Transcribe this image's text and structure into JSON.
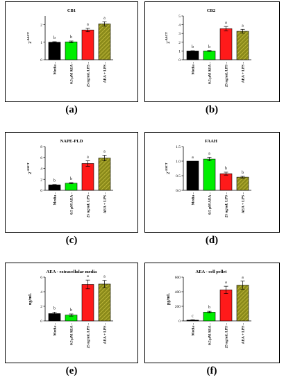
{
  "panel_letters": [
    "(a)",
    "(b)",
    "(c)",
    "(d)",
    "(e)",
    "(f)"
  ],
  "colors": {
    "media": "#000000",
    "aea": "#00ee00",
    "lps": "#ff1a1a",
    "aea_lps": "#8a8a1a",
    "aea_lps_stripe": "#c8c040"
  },
  "chart_data": [
    {
      "type": "bar",
      "title": "CB1",
      "ylabel": "2-ΔΔCT",
      "categories": [
        "Media",
        "0.5 µM AEA",
        "25 ng/mL LPS",
        "AEA + LPS"
      ],
      "values": [
        1.0,
        1.02,
        1.7,
        2.05
      ],
      "errors": [
        0.03,
        0.05,
        0.1,
        0.12
      ],
      "letters": [
        "b",
        "b",
        "a",
        "a"
      ],
      "ylim": [
        0,
        2.5
      ],
      "yticks": [
        0,
        1,
        2
      ],
      "grid": false
    },
    {
      "type": "bar",
      "title": "CB2",
      "ylabel": "2-ΔΔCT",
      "categories": [
        "Media",
        "0.5 µM AEA",
        "25 ng/mL LPS",
        "AEA + LPS"
      ],
      "values": [
        1.0,
        1.0,
        3.55,
        3.25
      ],
      "errors": [
        0.03,
        0.05,
        0.25,
        0.22
      ],
      "letters": [
        "b",
        "b",
        "a",
        "a"
      ],
      "ylim": [
        0,
        5
      ],
      "yticks": [
        0,
        1,
        2,
        3,
        4,
        5
      ],
      "grid": false
    },
    {
      "type": "bar",
      "title": "NAPE-PLD",
      "ylabel": "2-ΔΔCT",
      "categories": [
        "Media",
        "0.5 µM AEA",
        "25 ng/mL LPS",
        "AEA + LPS"
      ],
      "values": [
        1.0,
        1.3,
        4.9,
        5.9
      ],
      "errors": [
        0.05,
        0.1,
        0.5,
        0.5
      ],
      "letters": [
        "b",
        "b",
        "a",
        "a"
      ],
      "ylim": [
        0,
        8
      ],
      "yticks": [
        0,
        2,
        4,
        6,
        8
      ],
      "grid": false
    },
    {
      "type": "bar",
      "title": "FAAH",
      "ylabel": "2-ΔΔCT",
      "categories": [
        "Media",
        "0.5 µM AEA",
        "25 ng/mL LPS",
        "AEA + LPS"
      ],
      "values": [
        1.0,
        1.07,
        0.57,
        0.45
      ],
      "errors": [
        0.0,
        0.06,
        0.05,
        0.03
      ],
      "letters": [
        "a",
        "a",
        "b",
        "b"
      ],
      "ylim": [
        0,
        1.5
      ],
      "yticks": [
        0.0,
        0.5,
        1.0,
        1.5
      ],
      "grid": false
    },
    {
      "type": "bar",
      "title": "AEA - extracellular media",
      "ylabel": "ng/mL",
      "categories": [
        "Media",
        "0.5 µM AEA",
        "25 ng/mL LPS",
        "AEA + LPS"
      ],
      "values": [
        1.0,
        0.8,
        5.0,
        5.05
      ],
      "errors": [
        0.2,
        0.15,
        0.6,
        0.5
      ],
      "letters": [
        "b",
        "b",
        "a",
        "a"
      ],
      "ylim": [
        0,
        6
      ],
      "yticks": [
        0,
        2,
        4,
        6
      ],
      "grid": false
    },
    {
      "type": "bar",
      "title": "AEA - cell pellet",
      "ylabel": "pg/mL",
      "categories": [
        "Media",
        "0.5 µM AEA",
        "25 ng/mL LPS",
        "AEA + LPS"
      ],
      "values": [
        10,
        120,
        425,
        490
      ],
      "errors": [
        5,
        12,
        50,
        55
      ],
      "letters": [
        "c",
        "b",
        "a",
        "a"
      ],
      "ylim": [
        0,
        600
      ],
      "yticks": [
        0,
        200,
        400,
        600
      ],
      "grid": false
    }
  ]
}
